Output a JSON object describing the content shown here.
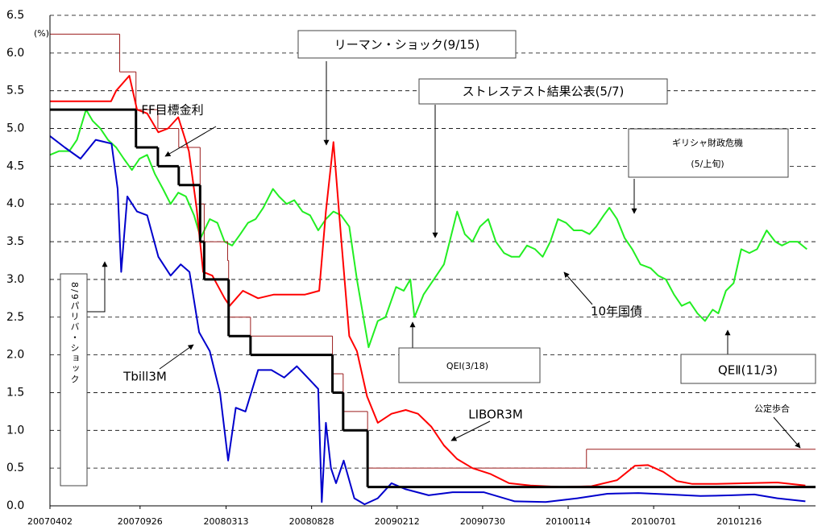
{
  "chart_data": {
    "type": "line",
    "unit_label": "(%)",
    "xlim": [
      "2007-04-02",
      "2011-05-15"
    ],
    "xticks": [
      {
        "value": "2007-04-02",
        "label": "20070402"
      },
      {
        "value": "2007-09-26",
        "label": "20070926"
      },
      {
        "value": "2008-03-13",
        "label": "20080313"
      },
      {
        "value": "2008-08-28",
        "label": "20080828"
      },
      {
        "value": "2009-02-12",
        "label": "20090212"
      },
      {
        "value": "2009-07-30",
        "label": "20090730"
      },
      {
        "value": "2010-01-14",
        "label": "20100114"
      },
      {
        "value": "2010-07-01",
        "label": "20100701"
      },
      {
        "value": "2010-12-16",
        "label": "20101216"
      }
    ],
    "ylim": [
      0,
      6.5
    ],
    "yticks": [
      {
        "value": 0,
        "label": "0.0"
      },
      0.5,
      {
        "value": 1,
        "label": "1.0"
      },
      1.5,
      {
        "value": 2,
        "label": "2.0"
      },
      2.5,
      {
        "value": 3,
        "label": "3.0"
      },
      3.5,
      {
        "value": 4,
        "label": "4.0"
      },
      4.5,
      {
        "value": 5,
        "label": "5.0"
      },
      5.5,
      {
        "value": 6,
        "label": "6.0"
      },
      6.5
    ],
    "grid": true,
    "series": [
      {
        "name": "公定歩合",
        "color": "#9b1c1c",
        "step": true,
        "x": [
          "2007-04-02",
          "2007-08-17",
          "2007-09-18",
          "2007-10-31",
          "2007-12-11",
          "2008-01-22",
          "2008-01-30",
          "2008-03-16",
          "2008-03-18",
          "2008-04-30",
          "2008-10-08",
          "2008-10-29",
          "2008-12-16",
          "2010-02-19"
        ],
        "values": [
          6.25,
          5.75,
          5.25,
          5.0,
          4.75,
          4.0,
          3.5,
          3.25,
          2.5,
          2.25,
          1.75,
          1.25,
          0.5,
          0.75
        ]
      },
      {
        "name": "FF目標金利",
        "color": "#000000",
        "step": true,
        "x": [
          "2007-04-02",
          "2007-09-18",
          "2007-10-31",
          "2007-12-11",
          "2008-01-22",
          "2008-01-30",
          "2008-03-18",
          "2008-04-30",
          "2008-10-08",
          "2008-10-29",
          "2008-12-16"
        ],
        "values": [
          5.25,
          4.75,
          4.5,
          4.25,
          3.5,
          3.0,
          2.25,
          2.0,
          1.5,
          1.0,
          0.25
        ]
      },
      {
        "name": "LIBOR3M",
        "color": "#ff0000",
        "x": [
          "2007-04-02",
          "2007-06-01",
          "2007-07-31",
          "2007-08-10",
          "2007-09-05",
          "2007-09-20",
          "2007-10-10",
          "2007-11-01",
          "2007-11-20",
          "2007-12-10",
          "2007-12-31",
          "2008-01-15",
          "2008-01-28",
          "2008-02-15",
          "2008-03-10",
          "2008-03-20",
          "2008-04-15",
          "2008-05-15",
          "2008-06-15",
          "2008-07-15",
          "2008-08-15",
          "2008-09-12",
          "2008-09-25",
          "2008-10-10",
          "2008-10-25",
          "2008-11-10",
          "2008-11-25",
          "2008-12-15",
          "2009-01-05",
          "2009-02-01",
          "2009-03-01",
          "2009-03-25",
          "2009-04-20",
          "2009-05-15",
          "2009-06-10",
          "2009-07-10",
          "2009-08-15",
          "2009-09-20",
          "2009-11-01",
          "2010-01-01",
          "2010-03-01",
          "2010-04-20",
          "2010-05-25",
          "2010-06-20",
          "2010-07-20",
          "2010-08-15",
          "2010-09-15",
          "2010-11-01",
          "2011-01-01",
          "2011-03-01",
          "2011-04-25"
        ],
        "values": [
          5.36,
          5.36,
          5.36,
          5.5,
          5.7,
          5.25,
          5.2,
          4.95,
          5.0,
          5.15,
          4.7,
          3.95,
          3.1,
          3.05,
          2.75,
          2.65,
          2.85,
          2.75,
          2.8,
          2.8,
          2.8,
          2.85,
          3.9,
          4.82,
          3.55,
          2.25,
          2.05,
          1.45,
          1.1,
          1.22,
          1.27,
          1.22,
          1.05,
          0.8,
          0.62,
          0.5,
          0.42,
          0.3,
          0.27,
          0.25,
          0.26,
          0.34,
          0.53,
          0.54,
          0.45,
          0.33,
          0.29,
          0.29,
          0.3,
          0.31,
          0.27
        ]
      },
      {
        "name": "Tbill3M",
        "color": "#0000cc",
        "x": [
          "2007-04-02",
          "2007-05-01",
          "2007-06-01",
          "2007-07-01",
          "2007-08-01",
          "2007-08-13",
          "2007-08-20",
          "2007-09-01",
          "2007-09-20",
          "2007-10-10",
          "2007-11-01",
          "2007-11-25",
          "2007-12-15",
          "2008-01-01",
          "2008-01-20",
          "2008-02-10",
          "2008-03-01",
          "2008-03-17",
          "2008-04-01",
          "2008-04-20",
          "2008-05-15",
          "2008-06-10",
          "2008-07-05",
          "2008-07-30",
          "2008-08-20",
          "2008-09-10",
          "2008-09-17",
          "2008-09-25",
          "2008-10-05",
          "2008-10-15",
          "2008-10-30",
          "2008-11-20",
          "2008-12-10",
          "2009-01-05",
          "2009-02-01",
          "2009-03-01",
          "2009-04-15",
          "2009-06-01",
          "2009-08-01",
          "2009-10-01",
          "2009-12-01",
          "2010-02-01",
          "2010-04-01",
          "2010-06-01",
          "2010-08-01",
          "2010-10-01",
          "2010-12-01",
          "2011-01-15",
          "2011-03-01",
          "2011-04-25"
        ],
        "values": [
          4.9,
          4.75,
          4.6,
          4.85,
          4.8,
          4.2,
          3.1,
          4.1,
          3.9,
          3.85,
          3.3,
          3.05,
          3.2,
          3.1,
          2.3,
          2.05,
          1.5,
          0.6,
          1.3,
          1.25,
          1.8,
          1.8,
          1.7,
          1.85,
          1.7,
          1.55,
          0.05,
          1.1,
          0.5,
          0.3,
          0.6,
          0.1,
          0.02,
          0.1,
          0.3,
          0.22,
          0.14,
          0.18,
          0.18,
          0.06,
          0.05,
          0.1,
          0.16,
          0.17,
          0.15,
          0.13,
          0.14,
          0.15,
          0.1,
          0.06
        ]
      },
      {
        "name": "10年国債",
        "color": "#22ee22",
        "x": [
          "2007-04-02",
          "2007-04-20",
          "2007-05-10",
          "2007-05-25",
          "2007-06-12",
          "2007-06-25",
          "2007-07-10",
          "2007-07-25",
          "2007-08-10",
          "2007-08-25",
          "2007-09-10",
          "2007-09-25",
          "2007-10-10",
          "2007-10-25",
          "2007-11-10",
          "2007-11-25",
          "2007-12-10",
          "2007-12-25",
          "2008-01-10",
          "2008-01-23",
          "2008-02-10",
          "2008-02-25",
          "2008-03-10",
          "2008-03-25",
          "2008-04-10",
          "2008-04-25",
          "2008-05-10",
          "2008-05-25",
          "2008-06-13",
          "2008-06-25",
          "2008-07-10",
          "2008-07-25",
          "2008-08-10",
          "2008-08-25",
          "2008-09-10",
          "2008-09-25",
          "2008-10-10",
          "2008-10-25",
          "2008-11-10",
          "2008-11-25",
          "2008-12-18",
          "2009-01-05",
          "2009-01-20",
          "2009-02-10",
          "2009-02-25",
          "2009-03-10",
          "2009-03-18",
          "2009-04-05",
          "2009-04-25",
          "2009-05-15",
          "2009-06-10",
          "2009-06-25",
          "2009-07-10",
          "2009-07-25",
          "2009-08-10",
          "2009-08-25",
          "2009-09-10",
          "2009-09-25",
          "2009-10-10",
          "2009-10-25",
          "2009-11-10",
          "2009-11-25",
          "2009-12-10",
          "2009-12-25",
          "2010-01-10",
          "2010-01-25",
          "2010-02-10",
          "2010-02-25",
          "2010-03-10",
          "2010-03-25",
          "2010-04-05",
          "2010-04-20",
          "2010-05-05",
          "2010-05-20",
          "2010-06-05",
          "2010-06-25",
          "2010-07-10",
          "2010-07-25",
          "2010-08-10",
          "2010-08-25",
          "2010-09-10",
          "2010-09-25",
          "2010-10-10",
          "2010-10-25",
          "2010-11-05",
          "2010-11-20",
          "2010-12-05",
          "2010-12-20",
          "2011-01-05",
          "2011-01-20",
          "2011-02-08",
          "2011-02-25",
          "2011-03-10",
          "2011-03-25",
          "2011-04-10",
          "2011-04-28"
        ],
        "values": [
          4.65,
          4.7,
          4.7,
          4.85,
          5.25,
          5.1,
          5.0,
          4.85,
          4.75,
          4.6,
          4.45,
          4.6,
          4.65,
          4.4,
          4.2,
          4.0,
          4.15,
          4.1,
          3.85,
          3.55,
          3.8,
          3.75,
          3.5,
          3.45,
          3.6,
          3.75,
          3.8,
          3.95,
          4.2,
          4.1,
          4.0,
          4.05,
          3.9,
          3.85,
          3.65,
          3.8,
          3.9,
          3.85,
          3.7,
          3.0,
          2.1,
          2.45,
          2.5,
          2.9,
          2.85,
          3.0,
          2.5,
          2.8,
          3.0,
          3.2,
          3.9,
          3.6,
          3.5,
          3.7,
          3.8,
          3.5,
          3.35,
          3.3,
          3.3,
          3.45,
          3.4,
          3.3,
          3.5,
          3.8,
          3.75,
          3.65,
          3.65,
          3.6,
          3.7,
          3.85,
          3.95,
          3.8,
          3.55,
          3.4,
          3.2,
          3.15,
          3.05,
          3.0,
          2.8,
          2.65,
          2.7,
          2.55,
          2.45,
          2.6,
          2.55,
          2.85,
          2.95,
          3.4,
          3.35,
          3.4,
          3.65,
          3.5,
          3.45,
          3.5,
          3.5,
          3.4
        ]
      }
    ],
    "annotations": [
      {
        "lines": [
          "リーマン・ショック(9/15)"
        ]
      },
      {
        "lines": [
          "ストレステスト結果公表(5/7)"
        ]
      },
      {
        "lines": [
          "ギリシャ財政危機",
          "(5/上旬)"
        ]
      },
      {
        "lines": [
          "8/9パリバ・ショック"
        ]
      },
      {
        "lines": [
          "QEⅠ(3/18)"
        ]
      },
      {
        "lines": [
          "QEⅡ(11/3)"
        ]
      }
    ]
  }
}
